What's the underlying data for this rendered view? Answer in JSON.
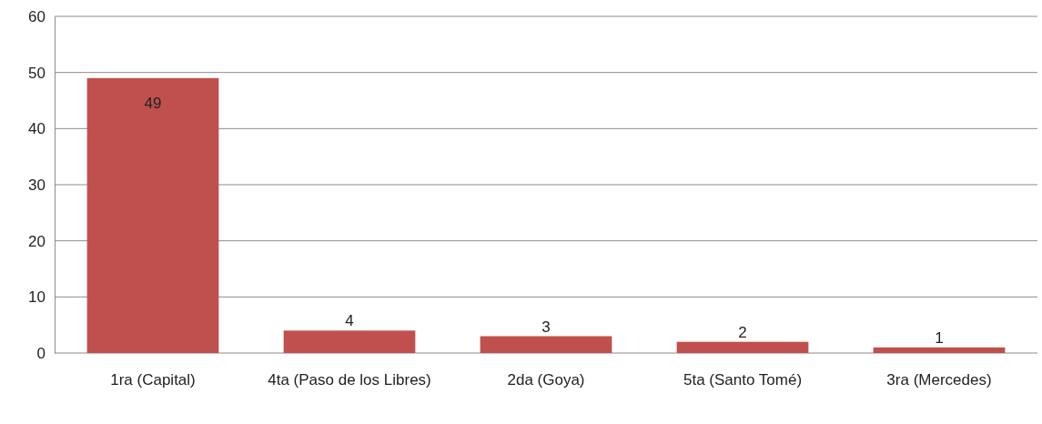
{
  "chart_data": {
    "type": "bar",
    "categories": [
      "1ra (Capital)",
      "4ta (Paso de los Libres)",
      "2da (Goya)",
      "5ta (Santo Tomé)",
      "3ra (Mercedes)"
    ],
    "values": [
      49,
      4,
      3,
      2,
      1
    ],
    "color": "#c0504d",
    "ylim": [
      0,
      60
    ],
    "yticks": [
      0,
      10,
      20,
      30,
      40,
      50,
      60
    ],
    "grid": "y",
    "data_labels": true
  }
}
